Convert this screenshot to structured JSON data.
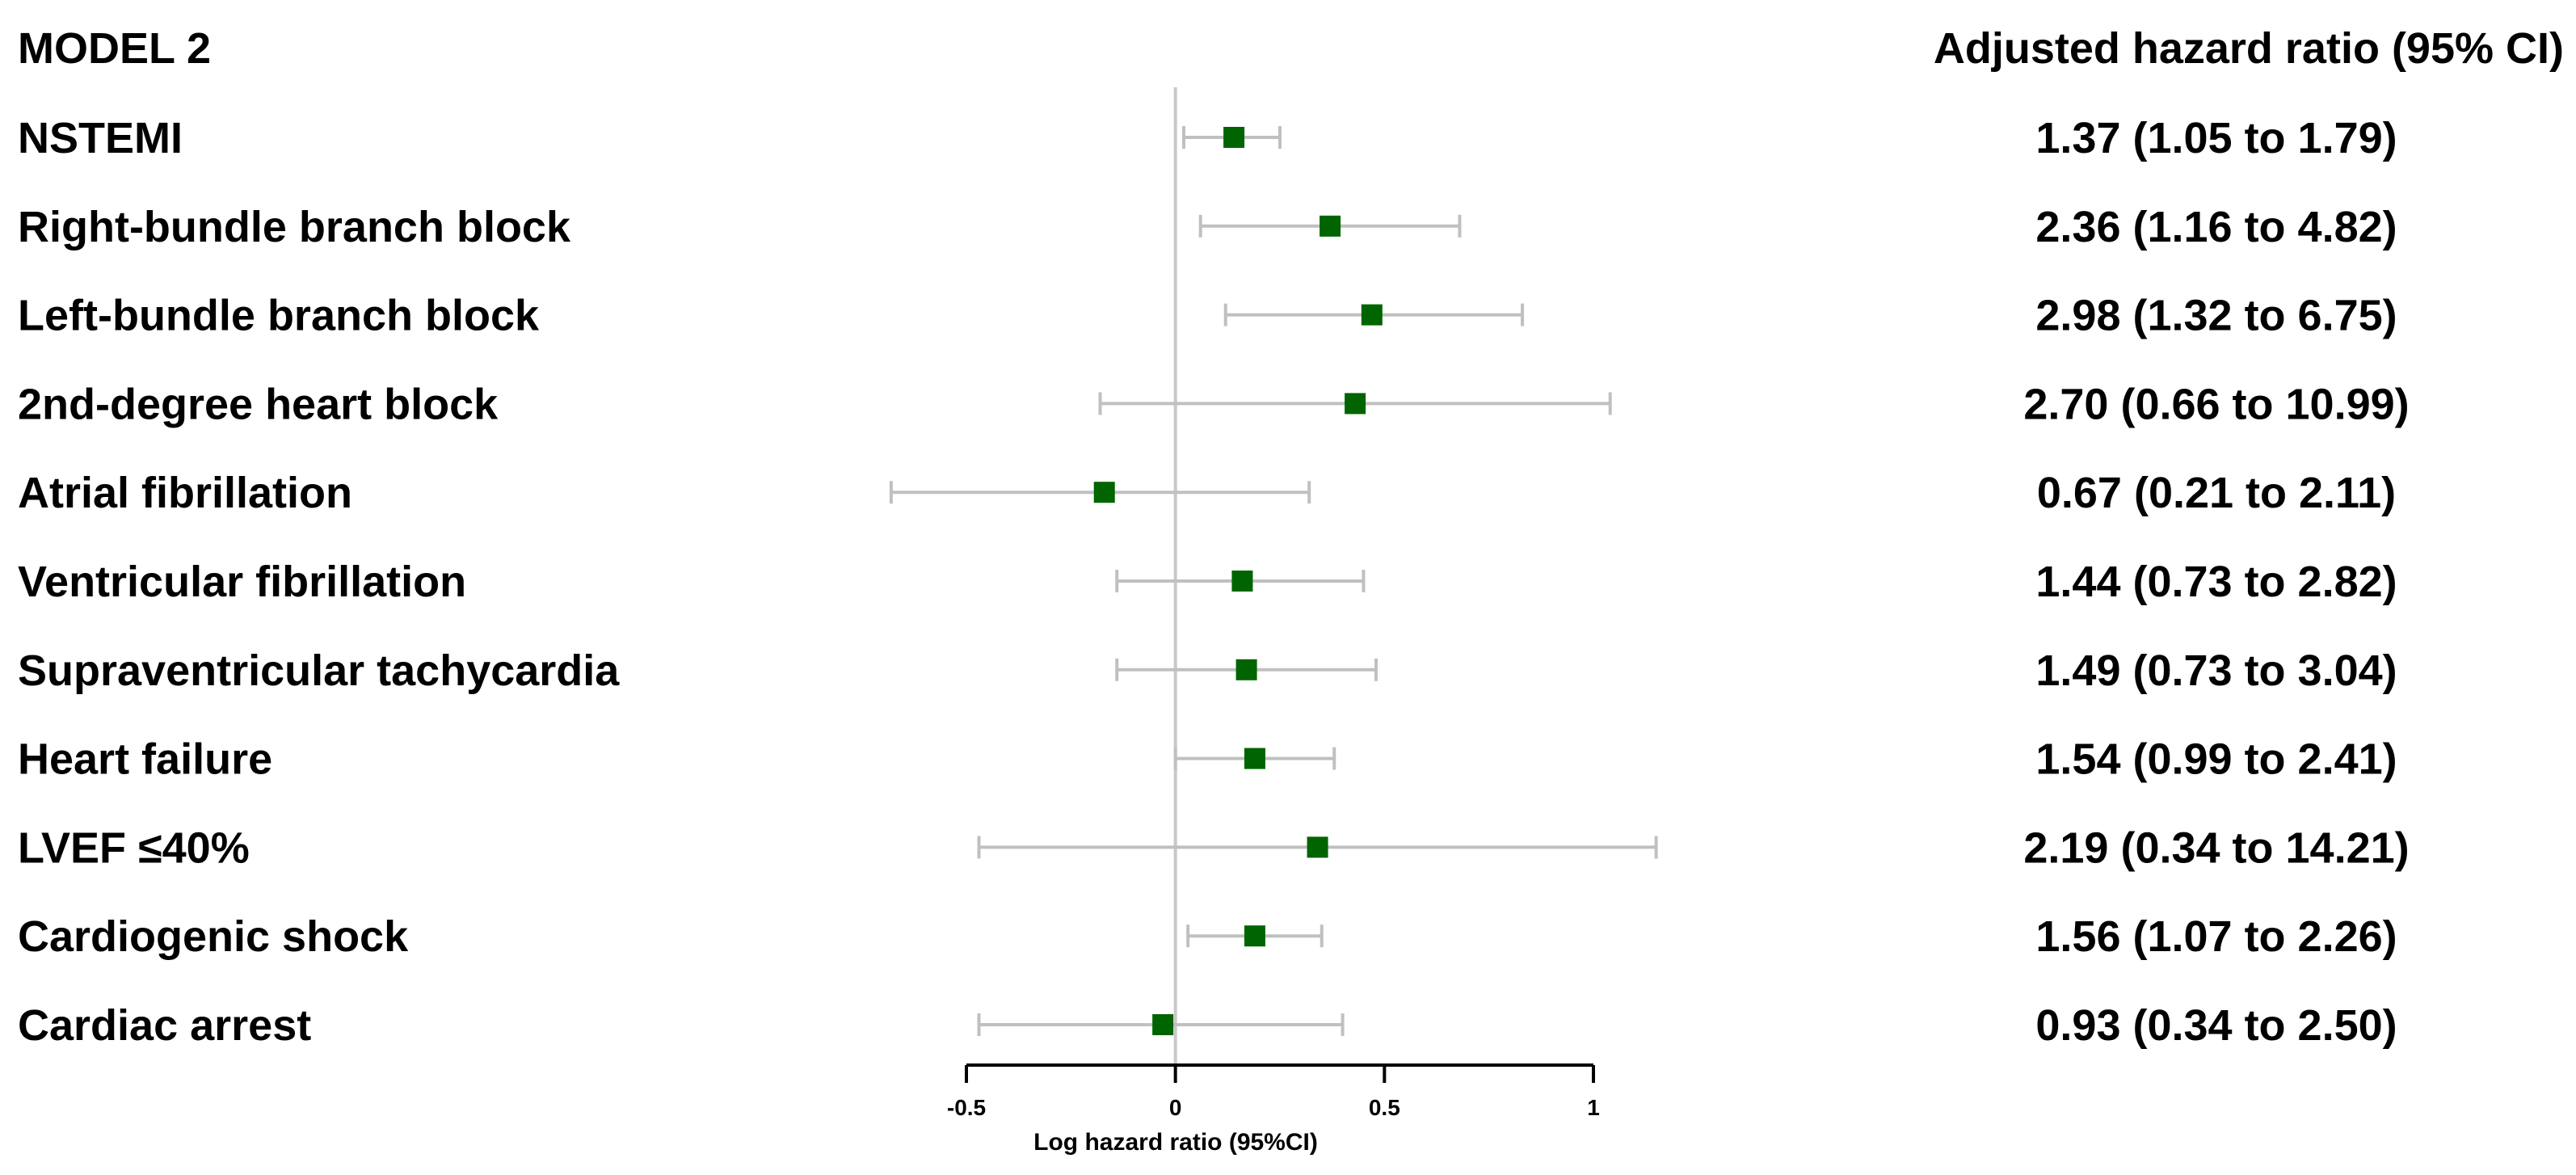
{
  "chart_data": {
    "type": "forest",
    "model_label": "MODEL 2",
    "value_column_header": "Adjusted hazard ratio (95% CI)",
    "xlabel": "Log hazard ratio (95%CI)",
    "xlim": [
      -0.5,
      1
    ],
    "x_ticks": [
      -0.5,
      0,
      0.5,
      1
    ],
    "x_tick_labels": [
      "-0.5",
      "0",
      "0.5",
      "1"
    ],
    "reference_line": 0,
    "marker_color": "#006400",
    "ci_color": "#c0c0c0",
    "rows": [
      {
        "label": "NSTEMI",
        "estimate": 0.14,
        "lower": 0.02,
        "upper": 0.25,
        "text": "1.37 (1.05 to 1.79)"
      },
      {
        "label": "Right-bundle branch block",
        "estimate": 0.37,
        "lower": 0.06,
        "upper": 0.68,
        "text": "2.36 (1.16 to 4.82)"
      },
      {
        "label": "Left-bundle branch block",
        "estimate": 0.47,
        "lower": 0.12,
        "upper": 0.83,
        "text": "2.98 (1.32 to 6.75)"
      },
      {
        "label": "2nd-degree heart block",
        "estimate": 0.43,
        "lower": -0.18,
        "upper": 1.04,
        "text": "2.70 (0.66 to 10.99)"
      },
      {
        "label": "Atrial fibrillation",
        "estimate": -0.17,
        "lower": -0.68,
        "upper": 0.32,
        "text": "0.67 (0.21 to 2.11)"
      },
      {
        "label": "Ventricular fibrillation",
        "estimate": 0.16,
        "lower": -0.14,
        "upper": 0.45,
        "text": "1.44 (0.73 to 2.82)"
      },
      {
        "label": "Supraventricular tachycardia",
        "estimate": 0.17,
        "lower": -0.14,
        "upper": 0.48,
        "text": "1.49 (0.73 to 3.04)"
      },
      {
        "label": "Heart failure",
        "estimate": 0.19,
        "lower": 0.0,
        "upper": 0.38,
        "text": "1.54 (0.99 to 2.41)"
      },
      {
        "label": "LVEF ≤40%",
        "estimate": 0.34,
        "lower": -0.47,
        "upper": 1.15,
        "text": "2.19 (0.34 to 14.21)"
      },
      {
        "label": "Cardiogenic shock",
        "estimate": 0.19,
        "lower": 0.03,
        "upper": 0.35,
        "text": "1.56 (1.07 to 2.26)"
      },
      {
        "label": "Cardiac arrest",
        "estimate": -0.03,
        "lower": -0.47,
        "upper": 0.4,
        "text": "0.93 (0.34 to 2.50)"
      }
    ]
  }
}
